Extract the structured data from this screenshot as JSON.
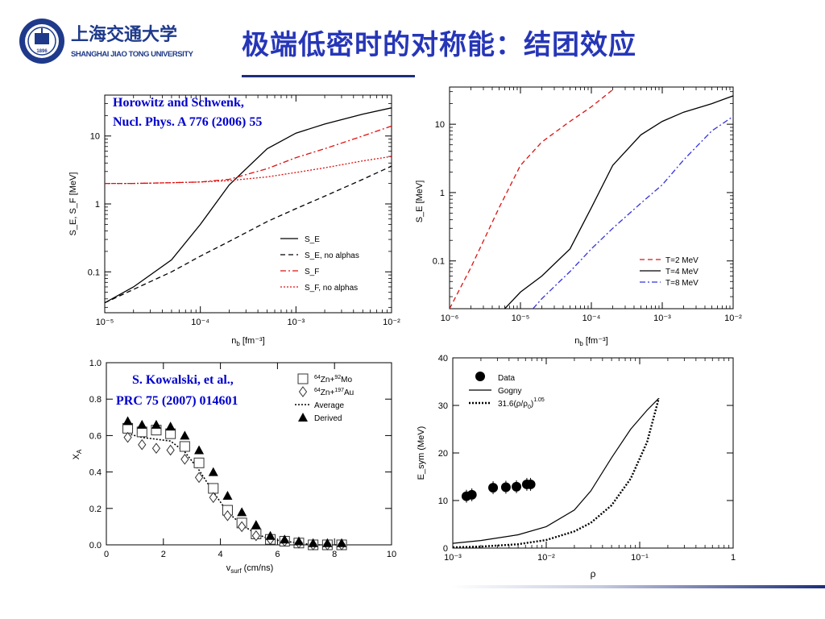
{
  "header": {
    "logo_cn": "上海交通大学",
    "logo_en": "SHANGHAI JIAO TONG UNIVERSITY",
    "logo_year": "1896",
    "title": "极端低密时的对称能：结团效应"
  },
  "colors": {
    "title": "#2636b8",
    "reference": "#0000cc",
    "rule": "#1d2e7a"
  },
  "chart_data": [
    {
      "type": "line",
      "panel": "top-left",
      "annotation": [
        "Horowitz and Schwenk,",
        "Nucl. Phys. A 776 (2006) 55"
      ],
      "xlabel": "n",
      "xlabel_sub": "b",
      "xlabel_unit": "[fm⁻³]",
      "ylabel": "S_E, S_F [MeV]",
      "xscale": "log",
      "yscale": "log",
      "xlim": [
        1e-05,
        0.01
      ],
      "ylim": [
        0.025,
        40
      ],
      "xticks": [
        {
          "value": 1e-05,
          "label": "10⁻⁵"
        },
        {
          "value": 0.0001,
          "label": "10⁻⁴"
        },
        {
          "value": 0.001,
          "label": "10⁻³"
        },
        {
          "value": 0.01,
          "label": "10⁻²"
        }
      ],
      "yticks": [
        {
          "value": 0.1,
          "label": "0.1"
        },
        {
          "value": 1,
          "label": "1"
        },
        {
          "value": 10,
          "label": "10"
        }
      ],
      "legend_position": "bottom-right",
      "series": [
        {
          "name": "S_E",
          "style": "solid",
          "color": "#000000",
          "x": [
            1e-05,
            2e-05,
            5e-05,
            0.0001,
            0.0002,
            0.0005,
            0.001,
            0.002,
            0.005,
            0.01
          ],
          "y": [
            0.035,
            0.06,
            0.15,
            0.5,
            1.9,
            6.5,
            11,
            15,
            21,
            26
          ]
        },
        {
          "name": "S_E, no alphas",
          "style": "dashed",
          "color": "#000000",
          "x": [
            1e-05,
            2e-05,
            5e-05,
            0.0001,
            0.0002,
            0.0005,
            0.001,
            0.002,
            0.005,
            0.01
          ],
          "y": [
            0.035,
            0.055,
            0.1,
            0.17,
            0.28,
            0.55,
            0.85,
            1.3,
            2.3,
            3.6
          ]
        },
        {
          "name": "S_F",
          "style": "dashdot",
          "color": "#dd1111",
          "x": [
            1e-05,
            2e-05,
            5e-05,
            0.0001,
            0.0002,
            0.0005,
            0.001,
            0.002,
            0.005,
            0.01
          ],
          "y": [
            2.0,
            2.0,
            2.05,
            2.1,
            2.3,
            3.3,
            4.8,
            6.5,
            10,
            14
          ]
        },
        {
          "name": "S_F, no alphas",
          "style": "dotted",
          "color": "#dd1111",
          "x": [
            1e-05,
            2e-05,
            5e-05,
            0.0001,
            0.0002,
            0.0005,
            0.001,
            0.002,
            0.005,
            0.01
          ],
          "y": [
            2.0,
            2.0,
            2.05,
            2.1,
            2.2,
            2.5,
            2.9,
            3.4,
            4.3,
            5.0
          ]
        }
      ]
    },
    {
      "type": "line",
      "panel": "top-right",
      "xlabel": "n",
      "xlabel_sub": "b",
      "xlabel_unit": "[fm⁻³]",
      "ylabel": "S_E [MeV]",
      "xscale": "log",
      "yscale": "log",
      "xlim": [
        1e-06,
        0.01
      ],
      "ylim": [
        0.02,
        35
      ],
      "xticks": [
        {
          "value": 1e-06,
          "label": "10⁻⁶"
        },
        {
          "value": 1e-05,
          "label": "10⁻⁵"
        },
        {
          "value": 0.0001,
          "label": "10⁻⁴"
        },
        {
          "value": 0.001,
          "label": "10⁻³"
        },
        {
          "value": 0.01,
          "label": "10⁻²"
        }
      ],
      "yticks": [
        {
          "value": 0.1,
          "label": "0.1"
        },
        {
          "value": 1,
          "label": "1"
        },
        {
          "value": 10,
          "label": "10"
        }
      ],
      "legend_position": "bottom-right",
      "series": [
        {
          "name": "T=2 MeV",
          "style": "dashed",
          "color": "#dd1111",
          "x": [
            1e-06,
            2e-06,
            5e-06,
            1e-05,
            2e-05,
            5e-05,
            0.0001,
            0.0002
          ],
          "y": [
            0.02,
            0.08,
            0.6,
            2.5,
            5.5,
            11,
            18,
            32
          ]
        },
        {
          "name": "T=4 MeV",
          "style": "solid",
          "color": "#000000",
          "x": [
            6e-06,
            1e-05,
            2e-05,
            5e-05,
            0.0001,
            0.0002,
            0.0005,
            0.001,
            0.002,
            0.005,
            0.01
          ],
          "y": [
            0.02,
            0.035,
            0.06,
            0.15,
            0.6,
            2.5,
            7,
            11,
            15,
            20,
            26
          ]
        },
        {
          "name": "T=8 MeV",
          "style": "dashdot",
          "color": "#3333dd",
          "x": [
            1.5e-05,
            2e-05,
            5e-05,
            0.0001,
            0.0002,
            0.0005,
            0.001,
            0.002,
            0.005,
            0.01
          ],
          "y": [
            0.02,
            0.028,
            0.07,
            0.15,
            0.3,
            0.7,
            1.3,
            3,
            8,
            13
          ]
        }
      ]
    },
    {
      "type": "scatter",
      "panel": "bottom-left",
      "annotation": [
        "S. Kowalski, et al.,",
        "PRC 75 (2007) 014601"
      ],
      "xlabel": "v",
      "xlabel_sub": "surf",
      "xlabel_unit": "(cm/ns)",
      "ylabel": "X",
      "ylabel_sub": "A",
      "xlim": [
        0,
        10
      ],
      "ylim": [
        0,
        1.0
      ],
      "xticks": [
        {
          "value": 0,
          "label": "0"
        },
        {
          "value": 2,
          "label": "2"
        },
        {
          "value": 4,
          "label": "4"
        },
        {
          "value": 6,
          "label": "6"
        },
        {
          "value": 8,
          "label": "8"
        },
        {
          "value": 10,
          "label": "10"
        }
      ],
      "yticks": [
        {
          "value": 0.0,
          "label": "0.0"
        },
        {
          "value": 0.2,
          "label": "0.2"
        },
        {
          "value": 0.4,
          "label": "0.4"
        },
        {
          "value": 0.6,
          "label": "0.6"
        },
        {
          "value": 0.8,
          "label": "0.8"
        },
        {
          "value": 1.0,
          "label": "1.0"
        }
      ],
      "legend_position": "top-right",
      "legend": [
        {
          "marker": "open-square",
          "pre": "64",
          "text1": "Zn+",
          "sup2": "92",
          "text2": "Mo"
        },
        {
          "marker": "open-diamond",
          "pre": "64",
          "text1": "Zn+",
          "sup2": "197",
          "text2": "Au"
        },
        {
          "marker": "dotted-line",
          "text1": "Average"
        },
        {
          "marker": "filled-triangle",
          "text1": "Derived"
        }
      ],
      "series": [
        {
          "name": "Zn+Mo",
          "marker": "open-square",
          "x": [
            0.75,
            1.25,
            1.75,
            2.25,
            2.75,
            3.25,
            3.75,
            4.25,
            4.75,
            5.25,
            5.75,
            6.25,
            6.75,
            7.25,
            7.75,
            8.25
          ],
          "y": [
            0.64,
            0.62,
            0.63,
            0.61,
            0.54,
            0.45,
            0.31,
            0.19,
            0.12,
            0.06,
            0.03,
            0.02,
            0.01,
            0.0,
            0.0,
            0.0
          ]
        },
        {
          "name": "Zn+Au",
          "marker": "open-diamond",
          "x": [
            0.75,
            1.25,
            1.75,
            2.25,
            2.75,
            3.25,
            3.75,
            4.25,
            4.75,
            5.25,
            5.75,
            6.25,
            6.75,
            7.25,
            7.75,
            8.25
          ],
          "y": [
            0.59,
            0.55,
            0.53,
            0.52,
            0.47,
            0.37,
            0.26,
            0.16,
            0.1,
            0.05,
            0.03,
            0.02,
            0.01,
            0.0,
            0.0,
            0.0
          ]
        },
        {
          "name": "Average",
          "marker": "dotted-line",
          "x": [
            0.75,
            1.25,
            1.75,
            2.25,
            2.75,
            3.25,
            3.75,
            4.25,
            4.75,
            5.25,
            5.75,
            6.25,
            6.75,
            7.25,
            7.75,
            8.25
          ],
          "y": [
            0.61,
            0.59,
            0.58,
            0.57,
            0.51,
            0.41,
            0.29,
            0.18,
            0.11,
            0.06,
            0.03,
            0.02,
            0.01,
            0.0,
            0.0,
            0.0
          ]
        },
        {
          "name": "Derived",
          "marker": "filled-triangle",
          "x": [
            0.75,
            1.25,
            1.75,
            2.25,
            2.75,
            3.25,
            3.75,
            4.25,
            4.75,
            5.25,
            5.75,
            6.25,
            6.75,
            7.25,
            7.75,
            8.25
          ],
          "y": [
            0.68,
            0.66,
            0.66,
            0.65,
            0.6,
            0.52,
            0.4,
            0.27,
            0.18,
            0.11,
            0.05,
            0.03,
            0.02,
            0.01,
            0.01,
            0.01
          ]
        }
      ]
    },
    {
      "type": "line",
      "panel": "bottom-right",
      "xlabel": "ρ",
      "ylabel": "E_sym (MeV)",
      "xscale": "log",
      "xlim": [
        0.001,
        1
      ],
      "ylim": [
        0,
        40
      ],
      "xticks": [
        {
          "value": 0.001,
          "label": "10⁻³"
        },
        {
          "value": 0.01,
          "label": "10⁻²"
        },
        {
          "value": 0.1,
          "label": "10⁻¹"
        },
        {
          "value": 1,
          "label": "1"
        }
      ],
      "yticks": [
        {
          "value": 0,
          "label": "0"
        },
        {
          "value": 10,
          "label": "10"
        },
        {
          "value": 20,
          "label": "20"
        },
        {
          "value": 30,
          "label": "30"
        },
        {
          "value": 40,
          "label": "40"
        }
      ],
      "legend_position": "top-left",
      "legend": [
        {
          "marker": "filled-circle",
          "text": "Data"
        },
        {
          "marker": "solid-line",
          "text": "Gogny"
        },
        {
          "marker": "dotted-line",
          "text": "31.6(ρ/ρ",
          "sub": "0",
          "text2": ")",
          "sup": "1.05"
        }
      ],
      "series": [
        {
          "name": "Data",
          "marker": "filled-circle",
          "x": [
            0.0014,
            0.0016,
            0.0027,
            0.0037,
            0.0048,
            0.0062,
            0.0068
          ],
          "y": [
            10.9,
            11.2,
            12.7,
            12.8,
            12.9,
            13.4,
            13.4
          ]
        },
        {
          "name": "Gogny",
          "style": "solid",
          "x": [
            0.001,
            0.002,
            0.005,
            0.01,
            0.02,
            0.03,
            0.05,
            0.08,
            0.12,
            0.16
          ],
          "y": [
            1,
            1.6,
            2.8,
            4.5,
            8,
            12,
            19,
            25,
            29,
            31.5
          ]
        },
        {
          "name": "31.6(ρ/ρ0)^1.05",
          "style": "dotted",
          "x": [
            0.001,
            0.002,
            0.005,
            0.01,
            0.02,
            0.03,
            0.05,
            0.08,
            0.12,
            0.16
          ],
          "y": [
            0.15,
            0.32,
            0.82,
            1.7,
            3.5,
            5.3,
            9.0,
            14.6,
            22.3,
            31.5
          ]
        }
      ]
    }
  ]
}
